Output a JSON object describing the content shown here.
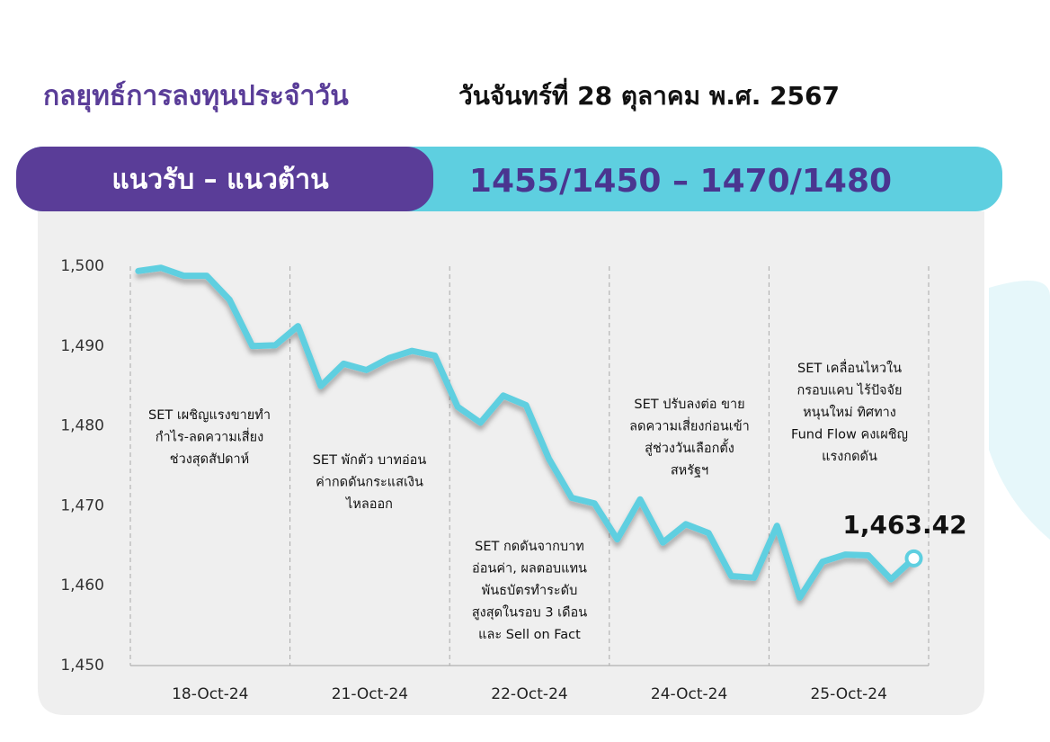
{
  "header": {
    "title": "กลยุทธ์การลงทุนประจำวัน",
    "date": "วันจันทร์ที่ 28 ตุลาคม พ.ศ. 2567",
    "level_label": "แนวรับ – แนวต้าน",
    "level_value": "1455/1450 – 1470/1480"
  },
  "chart_data": {
    "type": "line",
    "categories": [
      null,
      null,
      null,
      "18-Oct-24",
      null,
      null,
      null,
      null,
      null,
      null,
      "21-Oct-24",
      null,
      null,
      null,
      null,
      null,
      null,
      "22-Oct-24",
      null,
      null,
      null,
      null,
      null,
      null,
      "24-Oct-24",
      null,
      null,
      null,
      null,
      null,
      null,
      "25-Oct-24",
      null,
      null,
      null
    ],
    "series": [
      {
        "name": "SET",
        "color": "#5ecfe0",
        "values": [
          1499.4,
          1499.8,
          1498.8,
          1498.8,
          1495.8,
          1490.0,
          1490.1,
          1492.5,
          1485.0,
          1487.8,
          1487.0,
          1488.5,
          1489.4,
          1488.8,
          1482.4,
          1480.4,
          1483.8,
          1482.6,
          1475.9,
          1471.0,
          1470.3,
          1465.8,
          1470.8,
          1465.4,
          1467.7,
          1466.6,
          1461.2,
          1461.0,
          1467.5,
          1458.5,
          1463.0,
          1463.9,
          1463.8,
          1460.8,
          1463.42
        ],
        "value_labels": [
          null,
          null,
          null,
          null,
          null,
          null,
          null,
          null,
          null,
          null,
          null,
          null,
          null,
          null,
          null,
          null,
          null,
          null,
          null,
          null,
          null,
          null,
          null,
          null,
          null,
          null,
          null,
          null,
          null,
          null,
          null,
          null,
          null,
          null,
          "1,463.42"
        ]
      }
    ],
    "ylim": [
      1450,
      1500
    ],
    "yticks": [
      {
        "value": 1450,
        "label": "1,450"
      },
      {
        "value": 1460,
        "label": "1,460"
      },
      {
        "value": 1470,
        "label": "1,470"
      },
      {
        "value": 1480,
        "label": "1,480"
      },
      {
        "value": 1490,
        "label": "1,490"
      },
      {
        "value": 1500,
        "label": "1,500"
      }
    ],
    "annotations": [
      [
        "SET เผชิญแรงขายทำ",
        "กำไร-ลดความเสี่ยง",
        "ช่วงสุดสัปดาห์"
      ],
      [
        "SET พักตัว บาทอ่อน",
        "ค่ากดดันกระแสเงิน",
        "ไหลออก"
      ],
      [
        "SET กดดันจากบาท",
        "อ่อนค่า, ผลตอบแทน",
        "พันธบัตรทำระดับ",
        "สูงสุดในรอบ 3 เดือน",
        "และ Sell on Fact"
      ],
      [
        "SET ปรับลงต่อ ขาย",
        "ลดความเสี่ยงก่อนเข้า",
        "สู่ช่วงวันเลือกตั้ง",
        "สหรัฐฯ"
      ],
      [
        "SET เคลื่อนไหวใน",
        "กรอบแคบ ไร้ปัจจัย",
        "หนุนใหม่ ทิศทาง",
        "Fund Flow คงเผชิญ",
        "แรงกดดัน"
      ]
    ]
  }
}
